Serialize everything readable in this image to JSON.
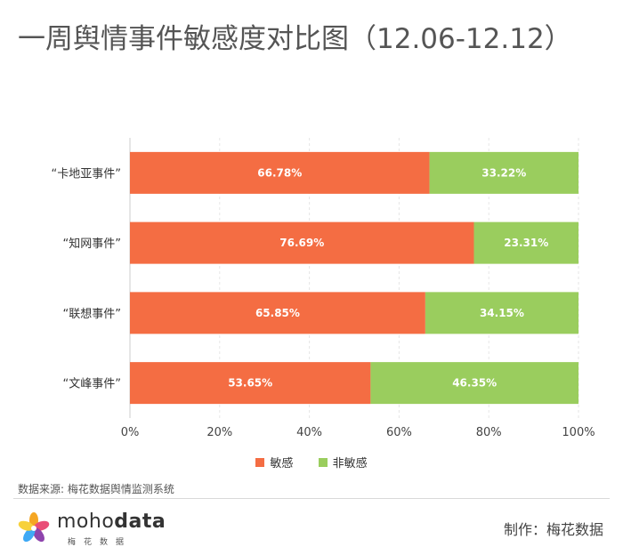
{
  "title": "一周舆情事件敏感度对比图（12.06-12.12）",
  "chart_data": {
    "type": "bar",
    "orientation": "horizontal",
    "stacked": true,
    "categories": [
      "“卡地亚事件”",
      "“知网事件”",
      "“联想事件”",
      "“文峰事件”"
    ],
    "series": [
      {
        "name": "敏感",
        "values": [
          66.78,
          76.69,
          65.85,
          53.65
        ],
        "labels": [
          "66.78%",
          "76.69%",
          "65.85%",
          "53.65%"
        ],
        "color": "#F46D43"
      },
      {
        "name": "非敏感",
        "values": [
          33.22,
          23.31,
          34.15,
          46.35
        ],
        "labels": [
          "33.22%",
          "23.31%",
          "34.15%",
          "46.35%"
        ],
        "color": "#9ACD5E"
      }
    ],
    "xlim": [
      0,
      100
    ],
    "xticks": [
      "0%",
      "20%",
      "40%",
      "60%",
      "80%",
      "100%"
    ],
    "grid": true,
    "legend_position": "bottom"
  },
  "source": "数据来源: 梅花数据舆情监测系统",
  "brand": {
    "name_light": "moho",
    "name_bold": "data",
    "sub": "梅花数据"
  },
  "maker": "制作：梅花数据"
}
